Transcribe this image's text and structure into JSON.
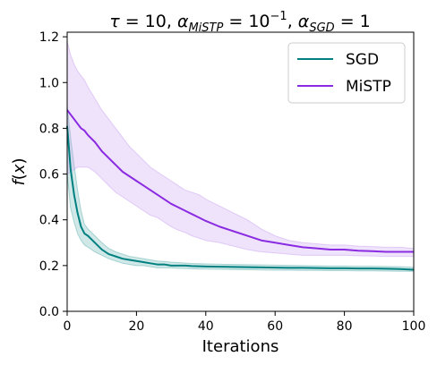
{
  "chart_data": {
    "type": "line",
    "title": {
      "tau_symbol": "τ",
      "tau_value": " = 10, ",
      "alpha_symbol": "α",
      "alpha1_sub": "MiSTP",
      "alpha1_value": " = 10",
      "alpha1_exp": "−1",
      "sep": ", ",
      "alpha2_sub": "SGD",
      "alpha2_value": " = 1"
    },
    "xlabel": "Iterations",
    "ylabel": {
      "f": "f",
      "paren_open": "(",
      "x": "x",
      "paren_close": ")"
    },
    "xlim": [
      0,
      100
    ],
    "ylim": [
      0,
      1.22
    ],
    "xticks": [
      0,
      20,
      40,
      60,
      80,
      100
    ],
    "xtick_labels": [
      "0",
      "20",
      "40",
      "60",
      "80",
      "100"
    ],
    "yticks": [
      0.0,
      0.2,
      0.4,
      0.6,
      0.8,
      1.0,
      1.2
    ],
    "ytick_labels": [
      "0.0",
      "0.2",
      "0.4",
      "0.6",
      "0.8",
      "1.0",
      "1.2"
    ],
    "grid": false,
    "legend_position": "top-right",
    "x": [
      0,
      1,
      2,
      3,
      4,
      5,
      6,
      8,
      10,
      12,
      14,
      16,
      18,
      20,
      22,
      24,
      26,
      28,
      30,
      32,
      34,
      36,
      38,
      40,
      44,
      48,
      52,
      56,
      60,
      64,
      68,
      72,
      76,
      80,
      84,
      88,
      92,
      96,
      100
    ],
    "series": [
      {
        "name": "SGD",
        "color": "#008080",
        "band_color": "#66b2b2",
        "mean": [
          0.81,
          0.62,
          0.51,
          0.43,
          0.37,
          0.34,
          0.33,
          0.3,
          0.27,
          0.25,
          0.24,
          0.23,
          0.225,
          0.22,
          0.215,
          0.21,
          0.205,
          0.205,
          0.2,
          0.2,
          0.2,
          0.198,
          0.197,
          0.196,
          0.195,
          0.194,
          0.193,
          0.192,
          0.191,
          0.19,
          0.19,
          0.189,
          0.188,
          0.188,
          0.187,
          0.187,
          0.186,
          0.185,
          0.182
        ],
        "lower": [
          0.6,
          0.45,
          0.39,
          0.34,
          0.31,
          0.29,
          0.28,
          0.26,
          0.245,
          0.23,
          0.22,
          0.21,
          0.205,
          0.2,
          0.2,
          0.195,
          0.19,
          0.19,
          0.19,
          0.188,
          0.187,
          0.186,
          0.185,
          0.185,
          0.184,
          0.183,
          0.182,
          0.181,
          0.18,
          0.18,
          0.179,
          0.179,
          0.178,
          0.178,
          0.177,
          0.177,
          0.176,
          0.175,
          0.175
        ],
        "upper": [
          0.9,
          0.76,
          0.64,
          0.53,
          0.44,
          0.38,
          0.36,
          0.33,
          0.3,
          0.275,
          0.26,
          0.25,
          0.24,
          0.235,
          0.23,
          0.225,
          0.22,
          0.218,
          0.215,
          0.213,
          0.211,
          0.209,
          0.208,
          0.207,
          0.206,
          0.205,
          0.204,
          0.203,
          0.202,
          0.201,
          0.2,
          0.199,
          0.198,
          0.198,
          0.197,
          0.197,
          0.196,
          0.195,
          0.192
        ]
      },
      {
        "name": "MiSTP",
        "color": "#8a2be2",
        "band_color": "#c9a3f2",
        "mean": [
          0.88,
          0.86,
          0.84,
          0.82,
          0.8,
          0.79,
          0.77,
          0.74,
          0.7,
          0.67,
          0.64,
          0.61,
          0.59,
          0.57,
          0.55,
          0.53,
          0.51,
          0.49,
          0.47,
          0.455,
          0.44,
          0.425,
          0.41,
          0.395,
          0.37,
          0.35,
          0.33,
          0.31,
          0.3,
          0.29,
          0.28,
          0.275,
          0.27,
          0.27,
          0.265,
          0.263,
          0.26,
          0.26,
          0.26
        ],
        "lower": [
          0.6,
          0.61,
          0.62,
          0.63,
          0.63,
          0.63,
          0.63,
          0.61,
          0.58,
          0.55,
          0.52,
          0.5,
          0.48,
          0.46,
          0.44,
          0.42,
          0.41,
          0.39,
          0.37,
          0.355,
          0.345,
          0.33,
          0.32,
          0.31,
          0.3,
          0.285,
          0.27,
          0.26,
          0.255,
          0.25,
          0.245,
          0.245,
          0.245,
          0.245,
          0.243,
          0.242,
          0.24,
          0.24,
          0.24
        ],
        "upper": [
          1.18,
          1.12,
          1.08,
          1.05,
          1.03,
          1.01,
          0.98,
          0.93,
          0.88,
          0.84,
          0.8,
          0.76,
          0.72,
          0.69,
          0.66,
          0.63,
          0.61,
          0.59,
          0.57,
          0.55,
          0.53,
          0.52,
          0.51,
          0.49,
          0.46,
          0.43,
          0.4,
          0.36,
          0.33,
          0.31,
          0.3,
          0.295,
          0.29,
          0.29,
          0.285,
          0.283,
          0.28,
          0.28,
          0.275
        ]
      }
    ]
  }
}
